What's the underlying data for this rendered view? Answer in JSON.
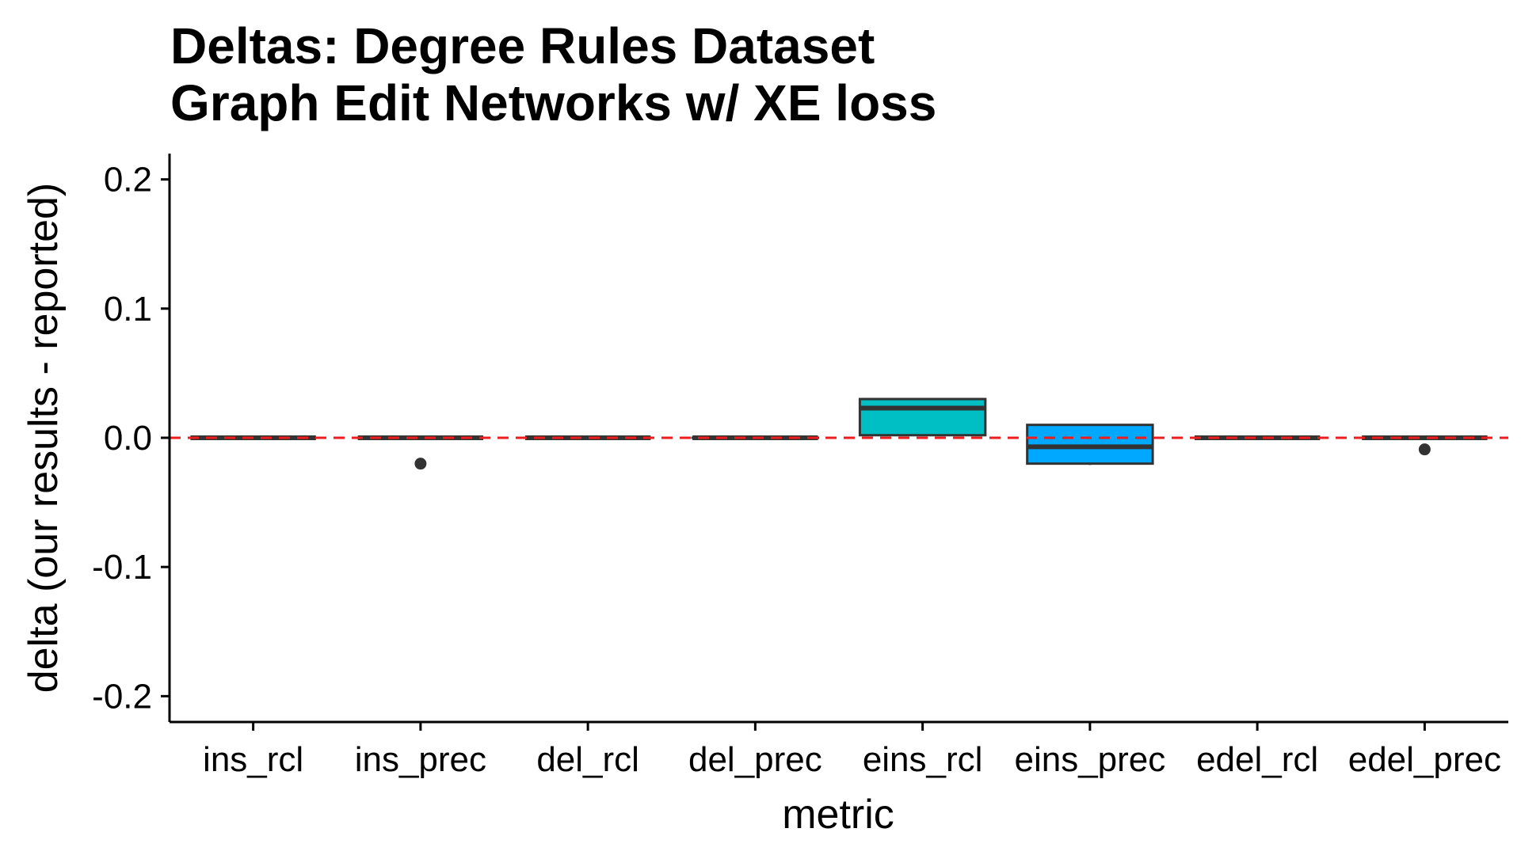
{
  "chart_data": {
    "type": "boxplot",
    "title": "Deltas: Degree Rules Dataset\nGraph Edit Networks w/ XE loss",
    "title_lines": [
      "Deltas: Degree Rules Dataset",
      "Graph Edit Networks w/ XE loss"
    ],
    "xlabel": "metric",
    "ylabel": "delta (our results - reported)",
    "ylim": [
      -0.22,
      0.22
    ],
    "yticks": [
      -0.2,
      -0.1,
      0.0,
      0.1,
      0.2
    ],
    "ytick_labels": [
      "-0.2",
      "-0.1",
      "0.0",
      "0.1",
      "0.2"
    ],
    "reference_line": {
      "y": 0.0,
      "style": "dashed",
      "color": "#ee1c1c"
    },
    "categories": [
      "ins_rcl",
      "ins_prec",
      "del_rcl",
      "del_prec",
      "eins_rcl",
      "eins_prec",
      "edel_rcl",
      "edel_prec"
    ],
    "boxes": [
      {
        "category": "ins_rcl",
        "q1": 0.0,
        "median": 0.0,
        "q3": 0.0,
        "whisker_low": 0.0,
        "whisker_high": 0.0,
        "outliers": [],
        "fill": "#f8766d"
      },
      {
        "category": "ins_prec",
        "q1": 0.0,
        "median": 0.0,
        "q3": 0.0,
        "whisker_low": 0.0,
        "whisker_high": 0.0,
        "outliers": [
          -0.02
        ],
        "fill": "#cd9600"
      },
      {
        "category": "del_rcl",
        "q1": 0.0,
        "median": 0.0,
        "q3": 0.0,
        "whisker_low": 0.0,
        "whisker_high": 0.0,
        "outliers": [],
        "fill": "#7cae00"
      },
      {
        "category": "del_prec",
        "q1": 0.0,
        "median": 0.0,
        "q3": 0.0,
        "whisker_low": 0.0,
        "whisker_high": 0.0,
        "outliers": [],
        "fill": "#00be67"
      },
      {
        "category": "eins_rcl",
        "q1": 0.002,
        "median": 0.023,
        "q3": 0.03,
        "whisker_low": 0.002,
        "whisker_high": 0.03,
        "outliers": [],
        "fill": "#00bfc4"
      },
      {
        "category": "eins_prec",
        "q1": -0.02,
        "median": -0.007,
        "q3": 0.01,
        "whisker_low": -0.021,
        "whisker_high": 0.01,
        "outliers": [],
        "fill": "#00a9ff"
      },
      {
        "category": "edel_rcl",
        "q1": 0.0,
        "median": 0.0,
        "q3": 0.0,
        "whisker_low": 0.0,
        "whisker_high": 0.0,
        "outliers": [],
        "fill": "#c77cff"
      },
      {
        "category": "edel_prec",
        "q1": 0.0,
        "median": 0.0,
        "q3": 0.0,
        "whisker_low": 0.0,
        "whisker_high": 0.0,
        "outliers": [
          -0.009
        ],
        "fill": "#ff61cc"
      }
    ],
    "grid": false,
    "legend": "none"
  }
}
